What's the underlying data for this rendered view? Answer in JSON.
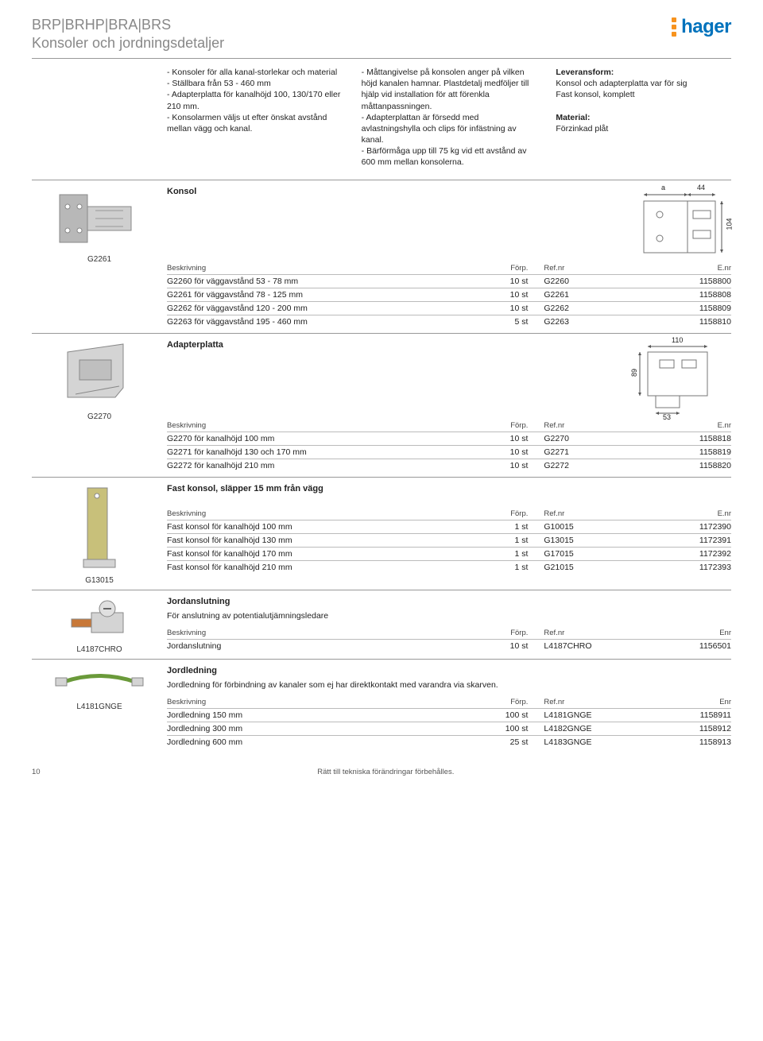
{
  "header": {
    "line1": "BRP|BRHP|BRA|BRS",
    "line2": "Konsoler och jordningsdetaljer",
    "logo_text": "hager",
    "logo_color": "#0072bc",
    "dot_color": "#f7931e"
  },
  "intro": {
    "col1": "- Konsoler för alla kanal-storlekar och material\n- Ställbara från 53 - 460 mm\n- Adapterplatta för kanalhöjd 100, 130/170 eller 210 mm.\n- Konsolarmen väljs ut efter önskat avstånd mellan vägg och kanal.",
    "col2": "- Måttangivelse på konsolen anger på vilken höjd kanalen hamnar. Plastdetalj medföljer till hjälp vid installation för att förenkla måttanpassningen.\n- Adapterplattan är försedd med avlastningshylla och clips för infästning av kanal.\n- Bärförmåga upp till 75 kg vid ett avstånd av 600 mm mellan konsolerna.",
    "col3_label1": "Leveransform:",
    "col3_text1": "Konsol och adapterplatta var för sig\nFast konsol, komplett",
    "col3_label2": "Material:",
    "col3_text2": "Förzinkad plåt"
  },
  "columns": {
    "desc": "Beskrivning",
    "pack": "Förp.",
    "ref": "Ref.nr",
    "enr": "E.nr",
    "enr2": "Enr"
  },
  "konsol": {
    "title": "Konsol",
    "caption": "G2261",
    "dim_a": "a",
    "dim_44": "44",
    "dim_104": "104",
    "rows": [
      {
        "desc": "G2260 för väggavstånd 53 - 78 mm",
        "pack": "10 st",
        "ref": "G2260",
        "enr": "1158800"
      },
      {
        "desc": "G2261 för väggavstånd 78 - 125 mm",
        "pack": "10 st",
        "ref": "G2261",
        "enr": "1158808"
      },
      {
        "desc": "G2262 för väggavstånd 120 - 200 mm",
        "pack": "10 st",
        "ref": "G2262",
        "enr": "1158809"
      },
      {
        "desc": "G2263 för väggavstånd 195 - 460 mm",
        "pack": "5 st",
        "ref": "G2263",
        "enr": "1158810"
      }
    ]
  },
  "adapter": {
    "title": "Adapterplatta",
    "caption": "G2270",
    "dim_110": "110",
    "dim_89": "89",
    "dim_53": "53",
    "rows": [
      {
        "desc": "G2270 för kanalhöjd 100 mm",
        "pack": "10 st",
        "ref": "G2270",
        "enr": "1158818"
      },
      {
        "desc": "G2271 för kanalhöjd 130 och 170 mm",
        "pack": "10 st",
        "ref": "G2271",
        "enr": "1158819"
      },
      {
        "desc": "G2272 för kanalhöjd 210 mm",
        "pack": "10 st",
        "ref": "G2272",
        "enr": "1158820"
      }
    ]
  },
  "fast": {
    "title": "Fast konsol, släpper 15 mm från vägg",
    "caption": "G13015",
    "rows": [
      {
        "desc": "Fast konsol för kanalhöjd 100 mm",
        "pack": "1 st",
        "ref": "G10015",
        "enr": "1172390"
      },
      {
        "desc": "Fast konsol för kanalhöjd 130 mm",
        "pack": "1 st",
        "ref": "G13015",
        "enr": "1172391"
      },
      {
        "desc": "Fast konsol för kanalhöjd 170 mm",
        "pack": "1 st",
        "ref": "G17015",
        "enr": "1172392"
      },
      {
        "desc": "Fast konsol för kanalhöjd 210 mm",
        "pack": "1 st",
        "ref": "G21015",
        "enr": "1172393"
      }
    ]
  },
  "jordan": {
    "title": "Jordanslutning",
    "sub": "För anslutning av potentialutjämningsledare",
    "caption": "L4187CHRO",
    "rows": [
      {
        "desc": "Jordanslutning",
        "pack": "10 st",
        "ref": "L4187CHRO",
        "enr": "1156501"
      }
    ]
  },
  "jordled": {
    "title": "Jordledning",
    "sub": "Jordledning för förbindning av kanaler som ej har direktkontakt med varandra via  skarven.",
    "caption": "L4181GNGE",
    "rows": [
      {
        "desc": "Jordledning 150 mm",
        "pack": "100 st",
        "ref": "L4181GNGE",
        "enr": "1158911"
      },
      {
        "desc": "Jordledning 300 mm",
        "pack": "100 st",
        "ref": "L4182GNGE",
        "enr": "1158912"
      },
      {
        "desc": "Jordledning 600 mm",
        "pack": "25 st",
        "ref": "L4183GNGE",
        "enr": "1158913"
      }
    ]
  },
  "footer": {
    "page": "10",
    "note": "Rätt till tekniska förändringar förbehålles."
  }
}
